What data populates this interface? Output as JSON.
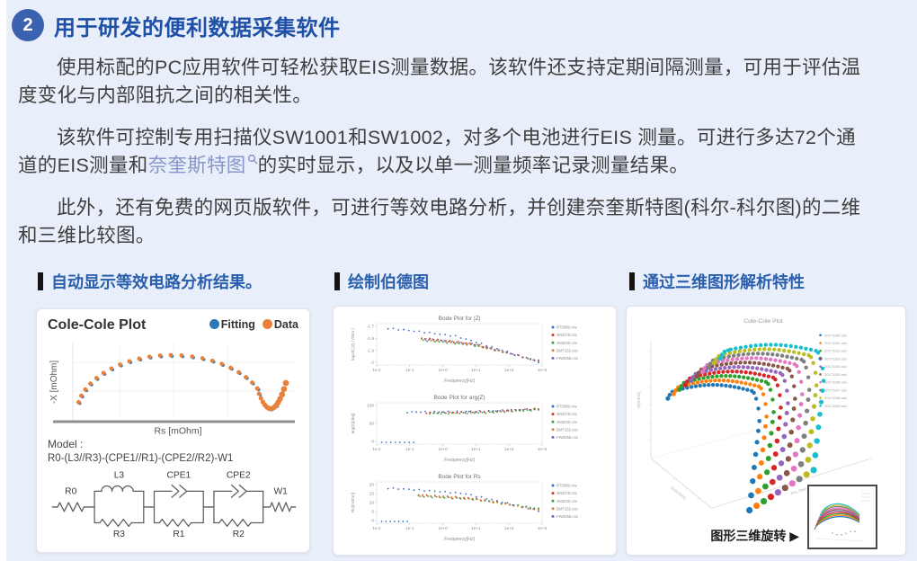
{
  "colors": {
    "bg": "#e9effa",
    "edge": "#ffffff",
    "badge_blue": "#3a62ae",
    "heading_blue": "#1d50a6",
    "panel_heading_blue": "#2a5fad",
    "text": "#3e3e3e",
    "link": "#8795c8",
    "bar_black": "#141414",
    "card_border": "#e1e4ea",
    "fitting_blue": "#2e78b8",
    "data_orange": "#e8813c"
  },
  "header": {
    "number": "2",
    "title": "用于研发的便利数据采集软件"
  },
  "paragraphs": {
    "p1": "使用标配的PC应用软件可轻松获取EIS测量数据。该软件还支持定期间隔测量，可用于评估温度变化与内部阻抗之间的相关性。",
    "p2_before": "该软件可控制专用扫描仪SW1001和SW1002，对多个电池进行EIS 测量。可进行多达72个通道的EIS测量和",
    "p2_link": "奈奎斯特图",
    "p2_after": "的实时显示，以及以单一测量频率记录测量结果。",
    "p3": "此外，还有免费的网页版软件，可进行等效电路分析，并创建奈奎斯特图(科尔-科尔图)的二维和三维比较图。"
  },
  "panels": [
    {
      "heading": "自动显示等效电路分析结果。"
    },
    {
      "heading": "绘制伯德图"
    },
    {
      "heading": "通过三维图形解析特性"
    }
  ],
  "cole": {
    "title": "Cole-Cole Plot",
    "legend": [
      {
        "label": "Fitting",
        "color": "#2e78b8"
      },
      {
        "label": "Data",
        "color": "#e8813c"
      }
    ],
    "xlabel": "Rs [mOhm]",
    "ylabel": "-X [mOhm]",
    "model_label": "Model :",
    "model_formula": "R0-(L3//R3)-(CPE1//R1)-(CPE2//R2)-W1",
    "circuit": {
      "r0": "R0",
      "l3": "L3",
      "r3": "R3",
      "cpe1": "CPE1",
      "r1": "R1",
      "cpe2": "CPE2",
      "r2": "R2",
      "w1": "W1"
    }
  },
  "plot3d": {
    "rotate_label": "图形三维旋转 ▶"
  },
  "chart_data": [
    {
      "id": "cole",
      "type": "scatter",
      "title": "Cole-Cole Plot",
      "xlabel": "Rs [mOhm]",
      "ylabel": "-X [mOhm]",
      "legend": [
        "Fitting",
        "Data"
      ],
      "colors": {
        "fitting": "#2e78b8",
        "data": "#e8813c"
      },
      "arc": {
        "n": 23,
        "deg_start": 168,
        "deg_end": 26
      },
      "tail": {
        "n": 16
      },
      "anchor_points_norm": [
        [
          0.05,
          0.12
        ],
        [
          0.12,
          0.35
        ],
        [
          0.22,
          0.58
        ],
        [
          0.35,
          0.72
        ],
        [
          0.46,
          0.74
        ],
        [
          0.6,
          0.62
        ],
        [
          0.72,
          0.42
        ],
        [
          0.78,
          0.18
        ],
        [
          0.84,
          0.14
        ],
        [
          0.9,
          0.35
        ],
        [
          0.95,
          0.48
        ]
      ]
    },
    {
      "id": "bode_z",
      "type": "scatter",
      "title": "Bode Plot for |Z|",
      "xlabel": "Frequency[Hz]",
      "ylabel": "log10( |Z| / Ohm )",
      "xticks": [
        "1e-2",
        "1e-1",
        "1e+0",
        "1e+1",
        "1e+2",
        "1e+3"
      ],
      "yticks": [
        "-1.7",
        "-1.8",
        "-1.9",
        "-2"
      ],
      "legend": [
        "BT5080.csv",
        "JM2170.csv",
        "JM3240.csv",
        "BM7162.csv",
        "FW0055.csv"
      ],
      "legend_colors": [
        "#3b6cc7",
        "#c0392b",
        "#3f9b4f",
        "#d9822b",
        "#8661a8"
      ],
      "series": [
        {
          "color": "#3b6cc7",
          "xs": 0.06,
          "yl": 0.08,
          "yr": 0.97,
          "knee": 0.45
        },
        {
          "color": "#c0392b",
          "xs": 0.27,
          "yl": 0.34,
          "yr": 0.95,
          "knee": 0.42
        },
        {
          "color": "#3f9b4f",
          "xs": 0.28,
          "yl": 0.4,
          "yr": 0.93,
          "knee": 0.42
        },
        {
          "color": "#d9822b",
          "xs": 0.27,
          "yl": 0.37,
          "yr": 0.94,
          "knee": 0.42
        },
        {
          "color": "#8661a8",
          "xs": 0.29,
          "yl": 0.36,
          "yr": 0.96,
          "knee": 0.44
        }
      ]
    },
    {
      "id": "bode_arg",
      "type": "scatter",
      "title": "Bode Plot for arg(Z)",
      "xlabel": "Frequency[Hz]",
      "ylabel": "arg(Z)[deg]",
      "xticks": [
        "1e-2",
        "1e-1",
        "1e+0",
        "1e+1",
        "1e+2",
        "1e+3"
      ],
      "yticks": [
        "100",
        "50",
        "0"
      ],
      "legend": [
        "BT5080.csv",
        "JM2170.csv",
        "JM3240.csv",
        "BM7162.csv",
        "FW0055.csv"
      ],
      "legend_colors": [
        "#3b6cc7",
        "#c0392b",
        "#3f9b4f",
        "#d9822b",
        "#8661a8"
      ],
      "series": [
        {
          "color": "#3b6cc7",
          "xs": 0.18,
          "yl": 0.2,
          "yr": 0.12,
          "knee": 0.5
        },
        {
          "color": "#c0392b",
          "xs": 0.3,
          "yl": 0.22,
          "yr": 0.11,
          "knee": 0.5
        },
        {
          "color": "#3f9b4f",
          "xs": 0.32,
          "yl": 0.24,
          "yr": 0.14,
          "knee": 0.5
        }
      ],
      "stray": {
        "color": "#3b6cc7",
        "y": 1.0,
        "x0": 0.02,
        "x1": 0.22,
        "n": 8
      }
    },
    {
      "id": "bode_rs",
      "type": "scatter",
      "title": "Bode Plot for Rs",
      "xlabel": "Frequency[Hz]",
      "ylabel": "Rs[mOhm]",
      "xticks": [
        "1e-2",
        "1e-1",
        "1e+0",
        "1e+1",
        "1e+2",
        "1e+3"
      ],
      "yticks": [
        "20",
        "15",
        "10",
        "5",
        "0"
      ],
      "legend": [
        "BT5080.csv",
        "JM2170.csv",
        "JM3240.csv",
        "BM7162.csv",
        "FW0055.csv"
      ],
      "legend_colors": [
        "#3b6cc7",
        "#c0392b",
        "#3f9b4f",
        "#d9822b",
        "#8661a8"
      ],
      "series": [
        {
          "color": "#3b6cc7",
          "xs": 0.06,
          "yl": 0.12,
          "yr": 0.72,
          "knee": 0.5
        },
        {
          "color": "#c0392b",
          "xs": 0.25,
          "yl": 0.3,
          "yr": 0.68,
          "knee": 0.45
        },
        {
          "color": "#3f9b4f",
          "xs": 0.26,
          "yl": 0.34,
          "yr": 0.66,
          "knee": 0.45
        },
        {
          "color": "#d9822b",
          "xs": 0.25,
          "yl": 0.32,
          "yr": 0.7,
          "knee": 0.45
        }
      ],
      "stray": {
        "color": "#3b6cc7",
        "y": 1.0,
        "x0": 0.02,
        "x1": 0.18,
        "n": 7
      }
    },
    {
      "id": "cole3d",
      "type": "scatter3d",
      "title": "Cole-Cole Plot",
      "n_series": 10,
      "colors": [
        "#1f77b4",
        "#ff7f0e",
        "#2ca02c",
        "#d62728",
        "#9467bd",
        "#8c564b",
        "#e377c2",
        "#7f7f7f",
        "#bcbd22",
        "#17becf"
      ],
      "legend": [
        "20171100.csv",
        "20171101.csv",
        "20171102.csv",
        "20171103.csv",
        "20171104.csv",
        "20171105.csv",
        "20171106.csv",
        "20171107.csv",
        "20171108.csv",
        "20171109.csv"
      ],
      "axis_labels": [
        "Rs[mOhm]",
        "-X[mOhm]",
        "Acq_Date"
      ]
    }
  ]
}
